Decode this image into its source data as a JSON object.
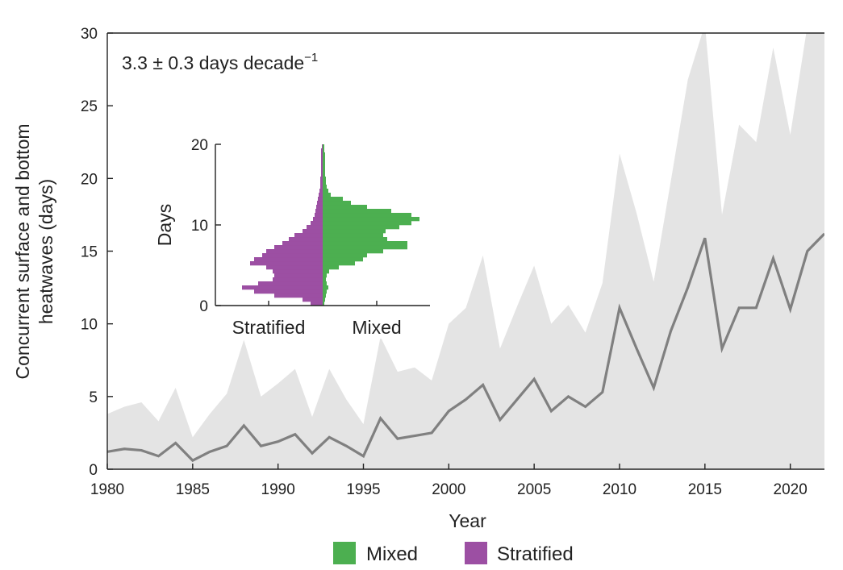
{
  "chart_data": [
    {
      "type": "line",
      "x": [
        1980,
        1981,
        1982,
        1983,
        1984,
        1985,
        1986,
        1987,
        1988,
        1989,
        1990,
        1991,
        1992,
        1993,
        1994,
        1995,
        1996,
        1997,
        1998,
        1999,
        2000,
        2001,
        2002,
        2003,
        2004,
        2005,
        2006,
        2007,
        2008,
        2009,
        2010,
        2011,
        2012,
        2013,
        2014,
        2015,
        2016,
        2017,
        2018,
        2019,
        2020,
        2021,
        2022
      ],
      "series": [
        {
          "values": [
            1.2,
            1.4,
            1.3,
            0.9,
            1.8,
            0.6,
            1.2,
            1.6,
            3.0,
            1.6,
            1.9,
            2.4,
            1.1,
            2.2,
            1.6,
            0.9,
            3.5,
            2.1,
            2.3,
            2.5,
            4.0,
            4.8,
            5.8,
            3.4,
            4.8,
            6.2,
            4.0,
            5.0,
            4.3,
            5.3,
            11.1,
            8.3,
            5.6,
            9.5,
            12.5,
            15.9,
            8.3,
            11.1,
            11.1,
            14.5,
            11.0,
            15.0,
            16.2
          ],
          "color": "#808080"
        },
        {
          "values": [
            3.8,
            4.3,
            4.6,
            3.3,
            5.6,
            2.2,
            3.8,
            5.2,
            8.9,
            5.0,
            5.9,
            6.9,
            3.6,
            6.9,
            4.8,
            3.1,
            9.1,
            6.7,
            7.0,
            6.1,
            10.0,
            11.1,
            14.7,
            8.3,
            11.2,
            14.0,
            10.0,
            11.3,
            9.4,
            12.8,
            21.7,
            17.6,
            12.9,
            19.8,
            26.8,
            30.6,
            17.5,
            23.7,
            22.5,
            29.0,
            23.0,
            30.5,
            30.5
          ],
          "color": "#e4e4e4"
        }
      ],
      "xlabel": "Year",
      "ylabel": "Concurrent surface and bottom heatwaves (days)",
      "xlim": [
        1980,
        2022
      ],
      "ylim": [
        0,
        30
      ],
      "xticks": [
        1980,
        1985,
        1990,
        1995,
        2000,
        2005,
        2010,
        2015,
        2020
      ],
      "yticks": [
        0,
        5,
        10,
        15,
        20,
        25,
        30
      ],
      "annotation": "3.3 ± 0.3 days decade",
      "annotation_sup": "−1",
      "legend": [
        {
          "label": "Mixed",
          "color": "#4caf50"
        },
        {
          "label": "Stratified",
          "color": "#9c4fa3"
        }
      ],
      "legend_position": "bottom-center"
    },
    {
      "type": "area",
      "days": [
        0,
        0.5,
        1,
        1.5,
        2,
        2.5,
        3,
        3.5,
        4,
        4.5,
        5,
        5.5,
        6,
        6.5,
        7,
        7.5,
        8,
        8.5,
        9,
        9.5,
        10,
        10.5,
        11,
        11.5,
        12,
        12.5,
        13,
        13.5,
        14,
        14.5,
        15,
        15.5,
        16,
        16.5,
        17,
        17.5,
        18,
        18.5,
        19,
        19.5,
        20
      ],
      "series": [
        {
          "name": "Mixed",
          "color": "#4caf50",
          "values": [
            0.02,
            0.03,
            0.04,
            0.05,
            0.07,
            0.05,
            0.04,
            0.05,
            0.08,
            0.2,
            0.4,
            0.5,
            0.55,
            0.75,
            1.05,
            1.05,
            0.8,
            0.75,
            0.78,
            0.95,
            1.1,
            1.2,
            1.1,
            0.85,
            0.55,
            0.35,
            0.25,
            0.1,
            0.07,
            0.05,
            0.04,
            0.04,
            0.03,
            0.03,
            0.03,
            0.03,
            0.03,
            0.03,
            0.02,
            0.02,
            0.02
          ]
        },
        {
          "name": "Stratified",
          "color": "#9c4fa3",
          "values": [
            0.15,
            0.25,
            0.6,
            0.85,
            1.0,
            0.8,
            0.62,
            0.6,
            0.62,
            0.7,
            0.9,
            0.85,
            0.75,
            0.7,
            0.6,
            0.5,
            0.42,
            0.35,
            0.25,
            0.2,
            0.15,
            0.12,
            0.1,
            0.09,
            0.08,
            0.07,
            0.06,
            0.05,
            0.04,
            0.03,
            0.03,
            0.03,
            0.02,
            0.02,
            0.02,
            0.02,
            0.02,
            0.02,
            0.02,
            0.01,
            0.01
          ]
        }
      ],
      "ylabel": "Days",
      "ylim": [
        0,
        20
      ],
      "yticks": [
        0,
        10,
        20
      ],
      "xlabels": [
        "Stratified",
        "Mixed"
      ]
    }
  ]
}
